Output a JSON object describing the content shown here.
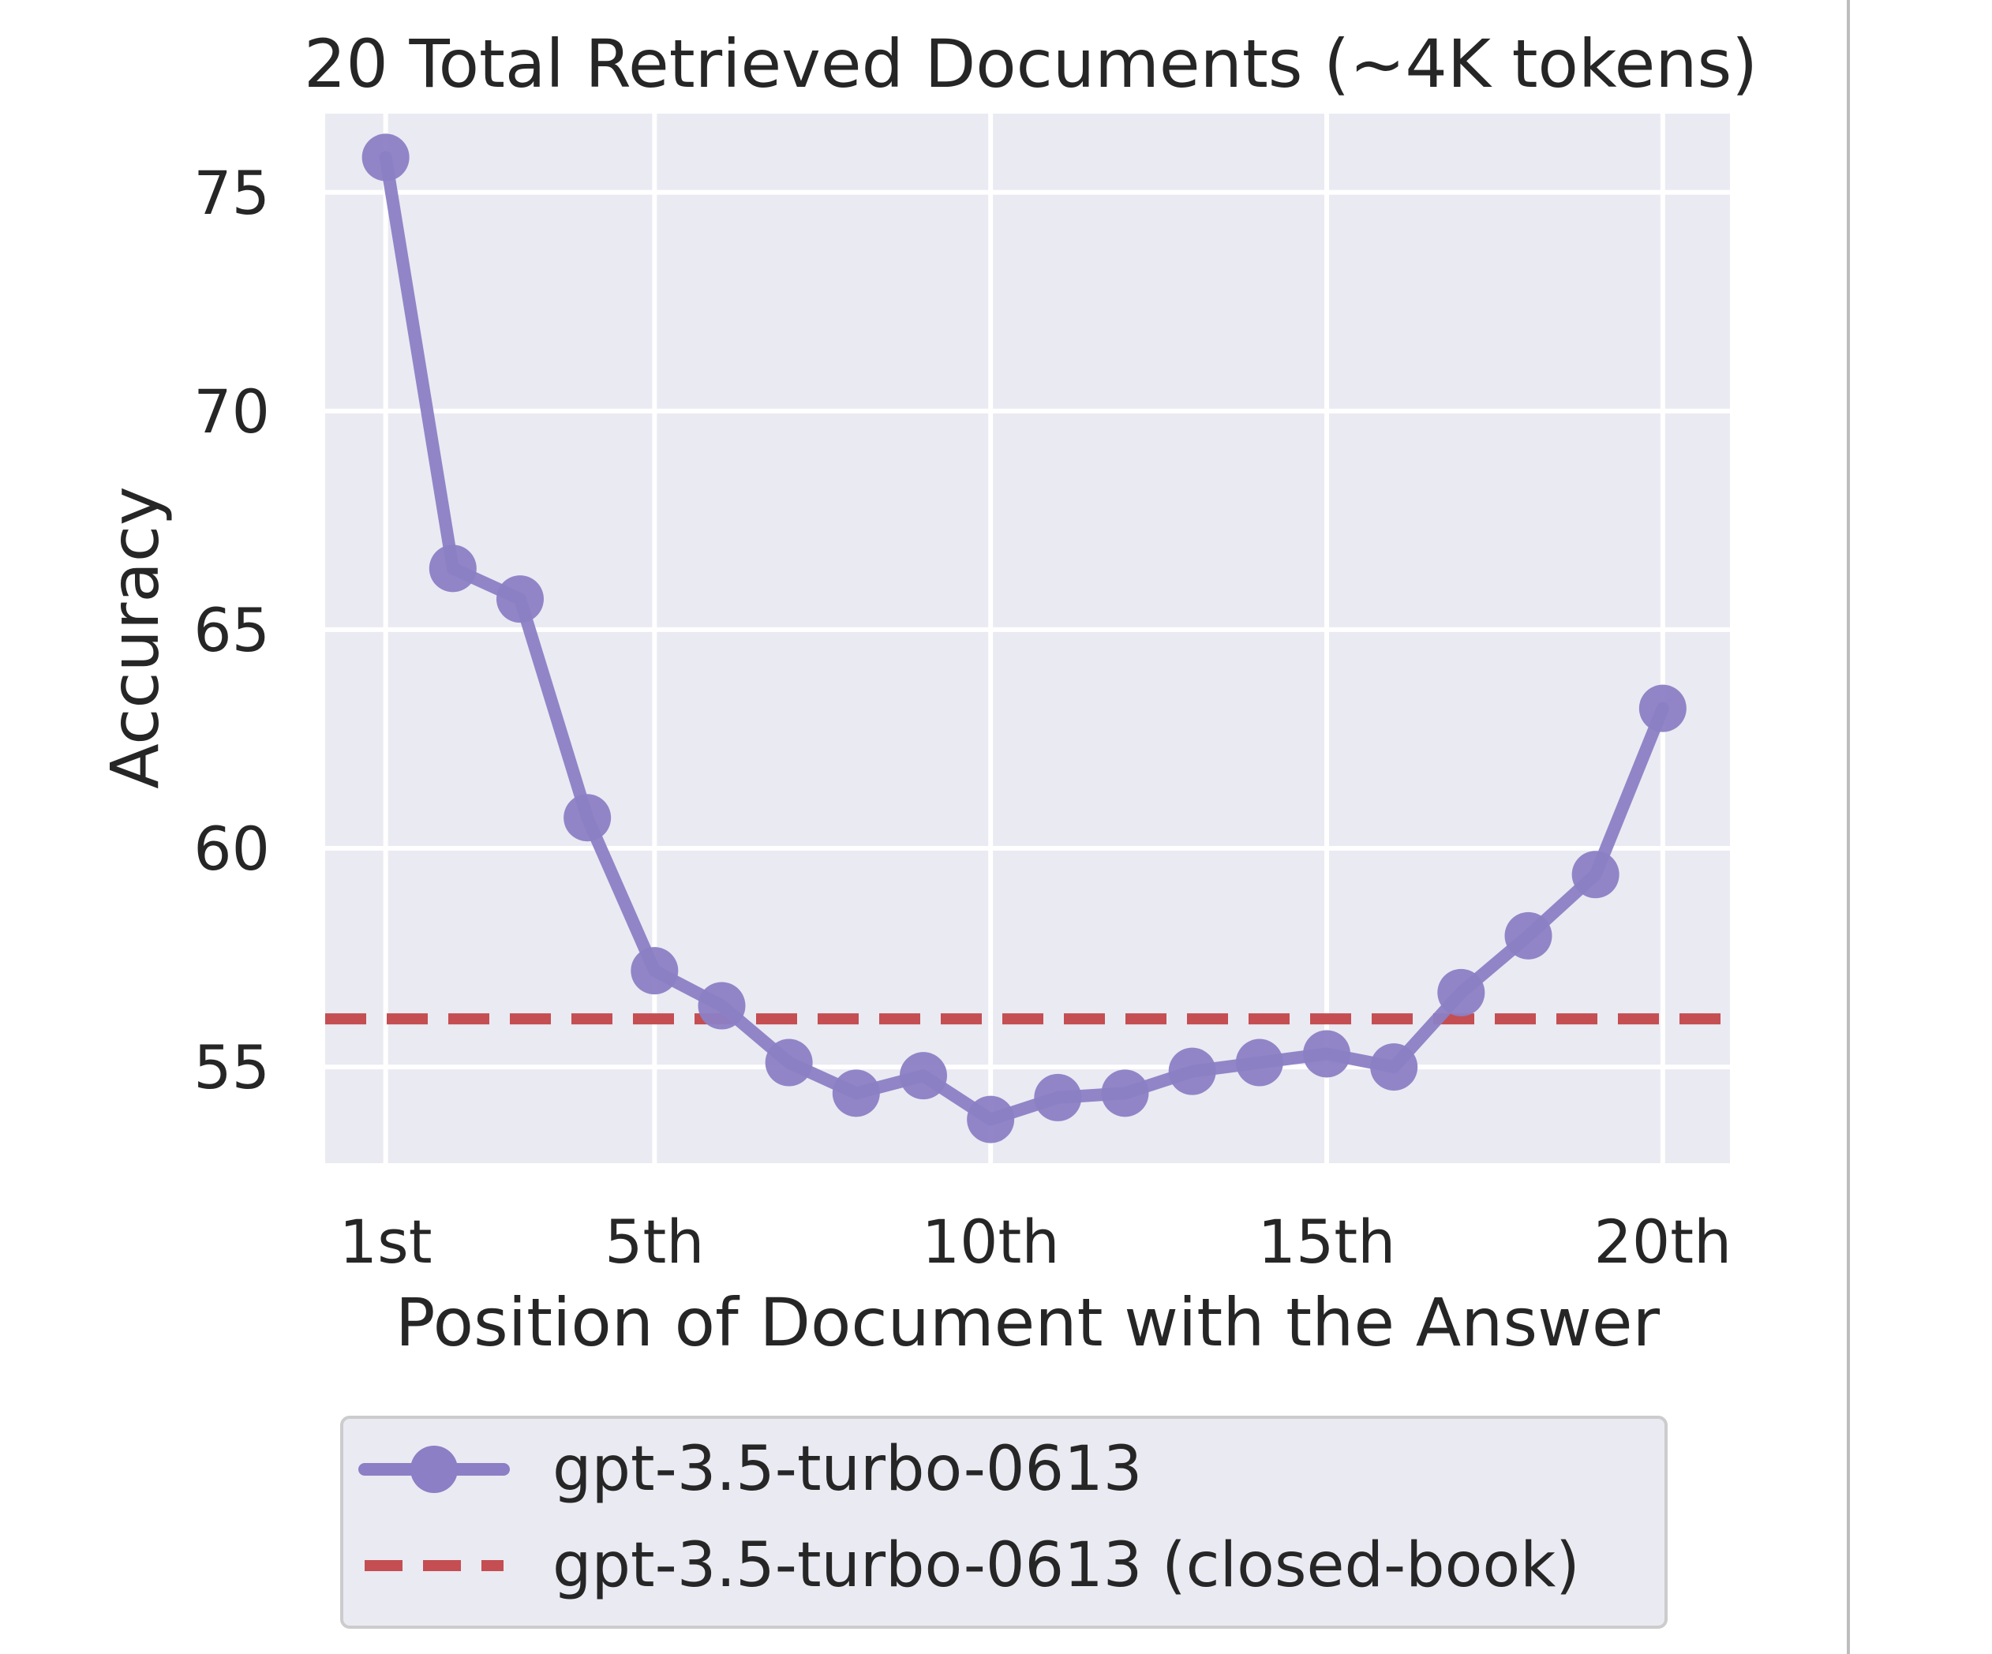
{
  "chart_data": {
    "type": "line",
    "title": "20 Total Retrieved Documents (~4K tokens)",
    "xlabel": "Position of Document with the Answer",
    "ylabel": "Accuracy",
    "x": [
      1,
      2,
      3,
      4,
      5,
      6,
      7,
      8,
      9,
      10,
      11,
      12,
      13,
      14,
      15,
      16,
      17,
      18,
      19,
      20
    ],
    "xticks": [
      1,
      5,
      10,
      15,
      20
    ],
    "xtick_labels": [
      "1st",
      "5th",
      "10th",
      "15th",
      "20th"
    ],
    "xlim": [
      0.1,
      21.0
    ],
    "yticks": [
      55,
      60,
      65,
      70,
      75
    ],
    "ytick_labels": [
      "55",
      "60",
      "65",
      "70",
      "75"
    ],
    "ylim": [
      52.8,
      76.8
    ],
    "grid": true,
    "legend_position": "bottom-center",
    "series": [
      {
        "name": "gpt-3.5-turbo-0613",
        "style": "line-with-markers",
        "color": "#8c7fc5",
        "values": [
          75.8,
          66.4,
          65.7,
          60.7,
          57.2,
          56.4,
          55.1,
          54.4,
          54.8,
          53.8,
          54.3,
          54.4,
          54.9,
          55.1,
          55.3,
          55.0,
          56.7,
          58.0,
          59.4,
          63.2
        ]
      },
      {
        "name": "gpt-3.5-turbo-0613 (closed-book)",
        "style": "dashed",
        "color": "#c44e52",
        "value": 56.1
      }
    ]
  },
  "colors": {
    "plot_background": "#eaeaf2",
    "grid": "#ffffff",
    "text": "#262626"
  }
}
